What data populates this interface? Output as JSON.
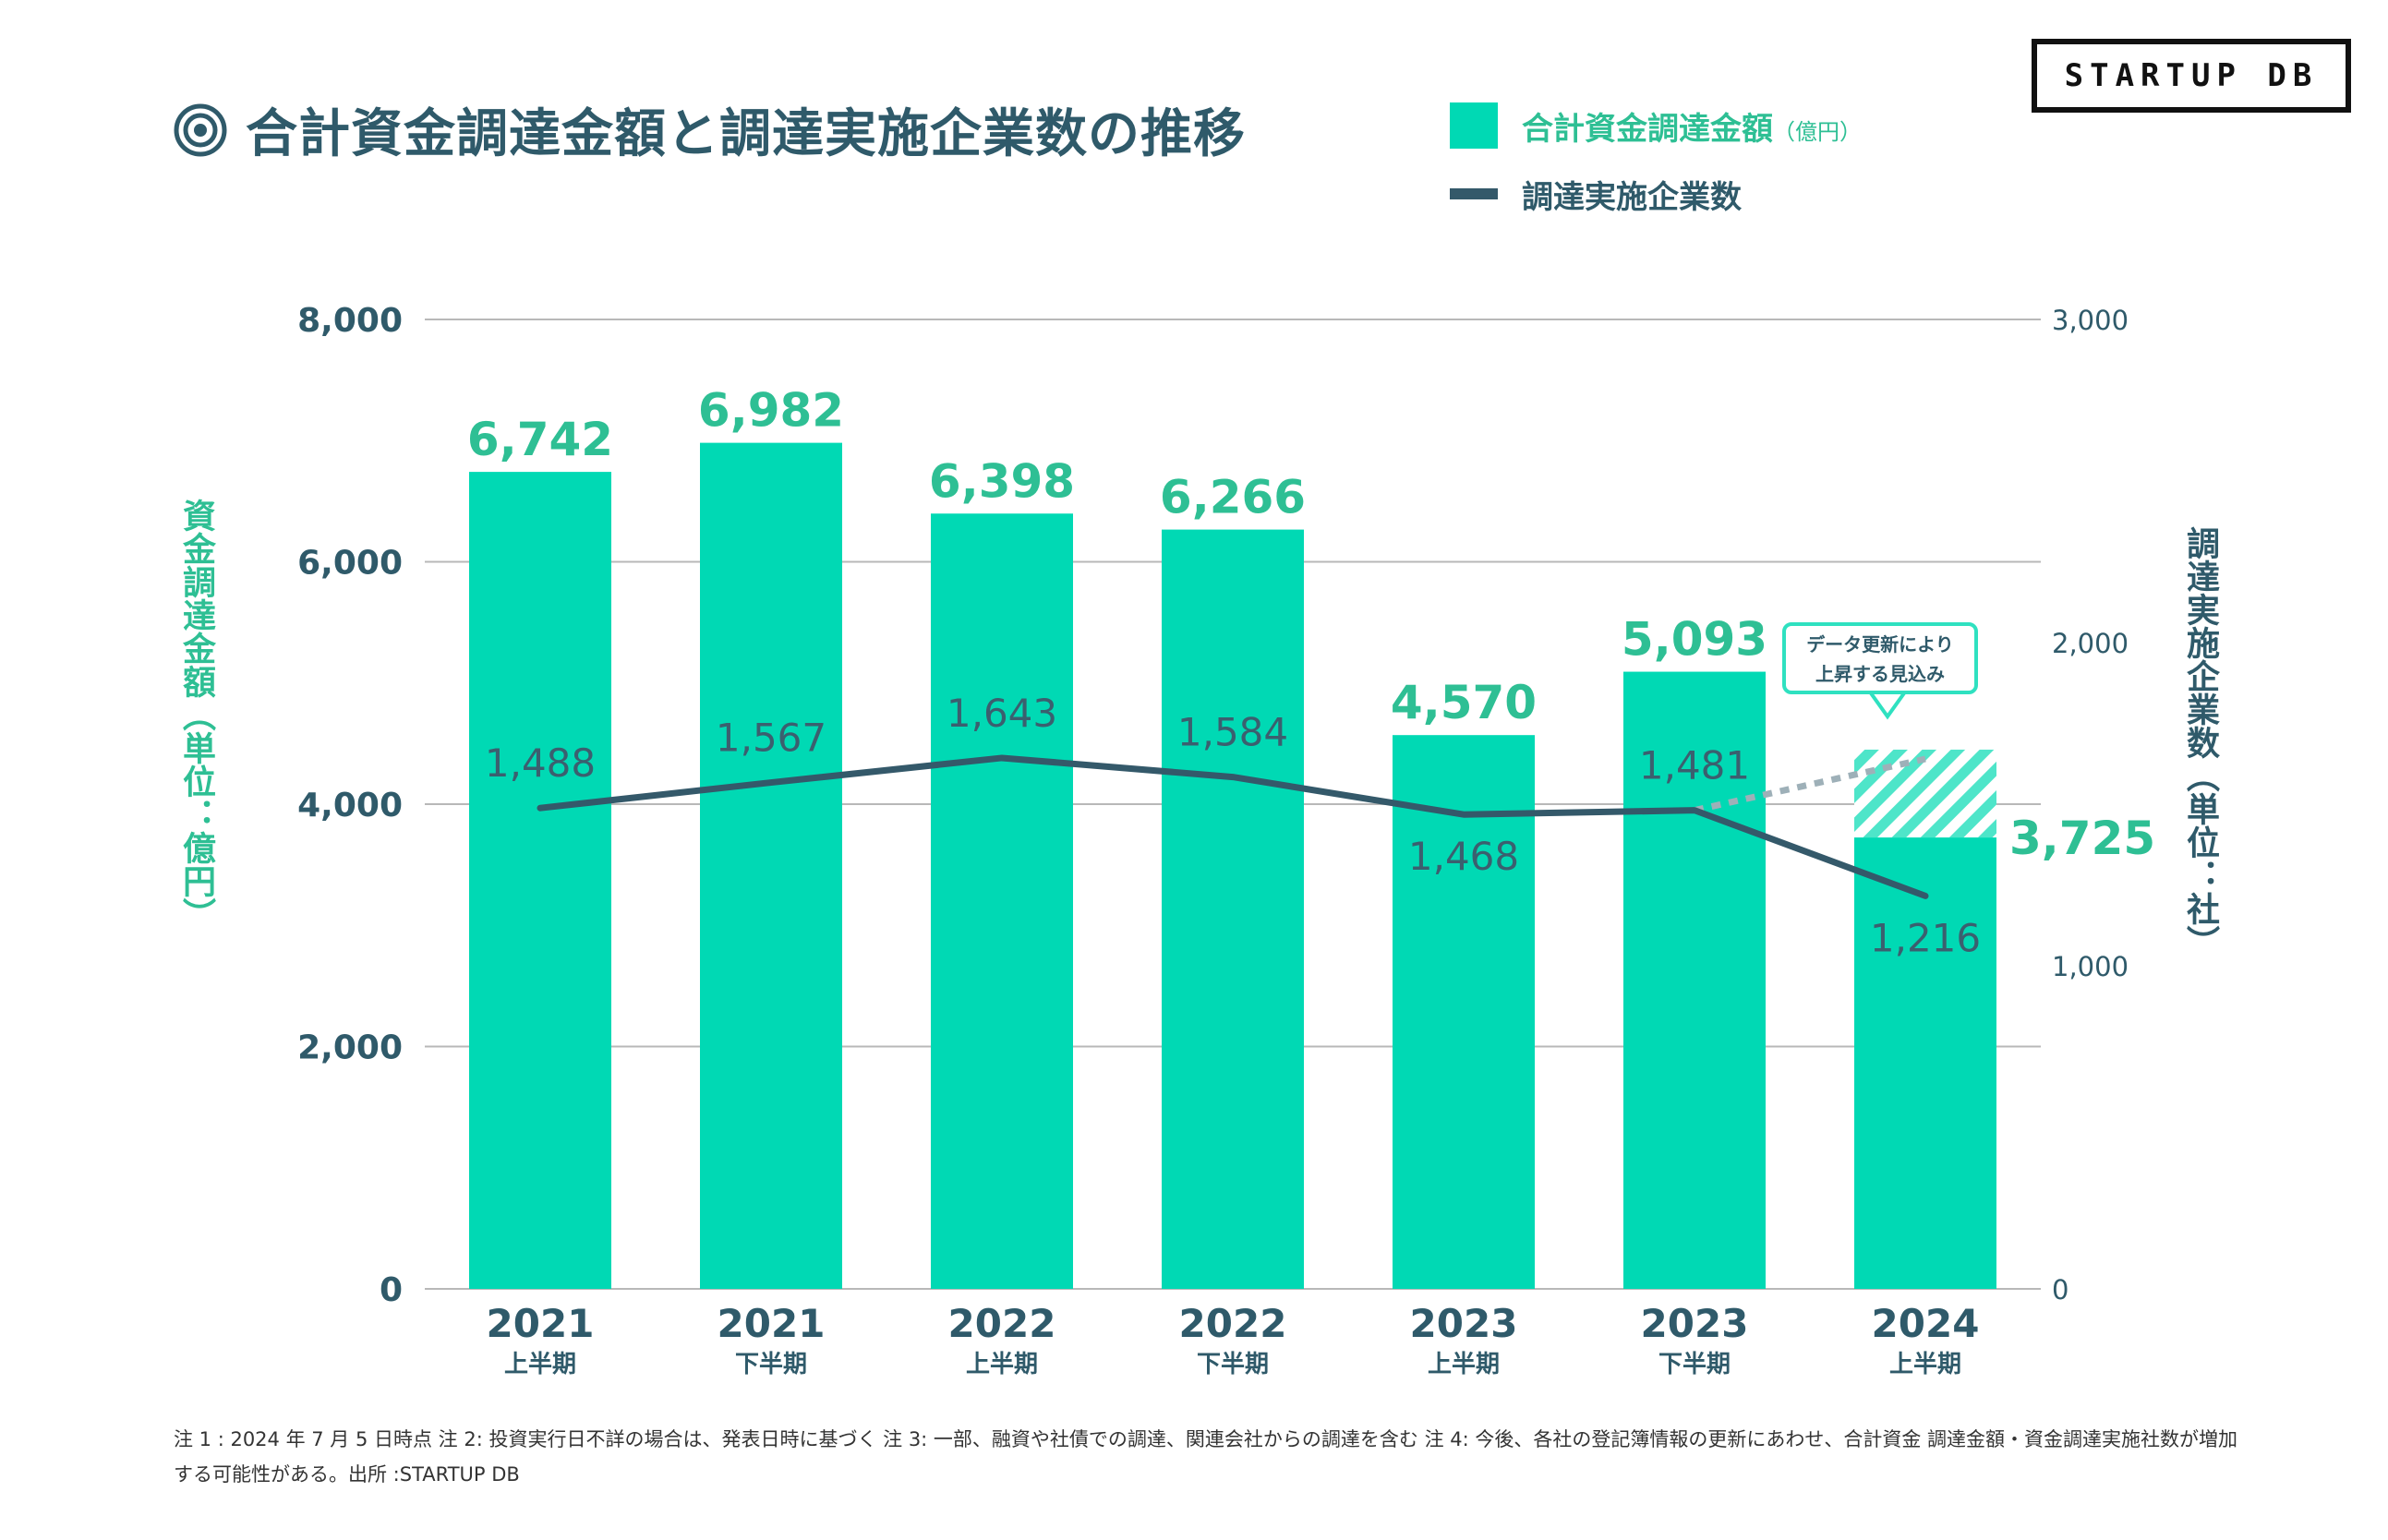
{
  "header": {
    "title": "合計資金調達金額と調達実施企業数の推移",
    "logo_text": "STARTUP DB"
  },
  "legend": {
    "bar_label": "合計資金調達金額",
    "bar_unit": "（億円）",
    "line_label": "調達実施企業数"
  },
  "axis_titles": {
    "left": "資金調達金額（単位：億円）",
    "right": "調達実施企業数（単位：社）"
  },
  "callout": {
    "line1": "データ更新により",
    "line2": "上昇する見込み"
  },
  "notes": "注 1 : 2024 年 7 月 5 日時点 注 2: 投資実行日不詳の場合は、発表日時に基づく 注 3: 一部、融資や社債での調達、関連会社からの調達を含む 注 4: 今後、各社の登記簿情報の更新にあわせ、合計資金 調達金額・資金調達実施社数が増加する可能性がある。出所 :STARTUP DB",
  "colors": {
    "bar": "#00d9b4",
    "bar_label": "#2ebf94",
    "line": "#34596a",
    "grid": "#b8b8b8",
    "hatch": "#2fe1c0"
  },
  "chart_data": {
    "type": "bar",
    "categories": [
      {
        "year": "2021",
        "half": "上半期"
      },
      {
        "year": "2021",
        "half": "下半期"
      },
      {
        "year": "2022",
        "half": "上半期"
      },
      {
        "year": "2022",
        "half": "下半期"
      },
      {
        "year": "2023",
        "half": "上半期"
      },
      {
        "year": "2023",
        "half": "下半期"
      },
      {
        "year": "2024",
        "half": "上半期"
      }
    ],
    "series": [
      {
        "name": "合計資金調達金額（億円）",
        "kind": "bar",
        "axis": "left",
        "values": [
          6742,
          6982,
          6398,
          6266,
          4570,
          5093,
          3725
        ],
        "labels": [
          "6,742",
          "6,982",
          "6,398",
          "6,266",
          "4,570",
          "5,093",
          "3,725"
        ]
      },
      {
        "name": "調達実施企業数",
        "kind": "line",
        "axis": "right",
        "values": [
          1488,
          1567,
          1643,
          1584,
          1468,
          1481,
          1216
        ],
        "labels": [
          "1,488",
          "1,567",
          "1,643",
          "1,584",
          "1,468",
          "1,481",
          "1,216"
        ]
      }
    ],
    "projection": {
      "category_index": 6,
      "bar_projected_value": 4450,
      "line_projected_value": 1640
    },
    "left_axis": {
      "ylim": [
        0,
        8000
      ],
      "ticks": [
        0,
        2000,
        4000,
        6000,
        8000
      ],
      "tick_labels": [
        "0",
        "2,000",
        "4,000",
        "6,000",
        "8,000"
      ]
    },
    "right_axis": {
      "ylim": [
        0,
        3000
      ],
      "ticks": [
        0,
        1000,
        2000,
        3000
      ],
      "tick_labels": [
        "0",
        "1,000",
        "2,000",
        "3,000"
      ]
    }
  }
}
